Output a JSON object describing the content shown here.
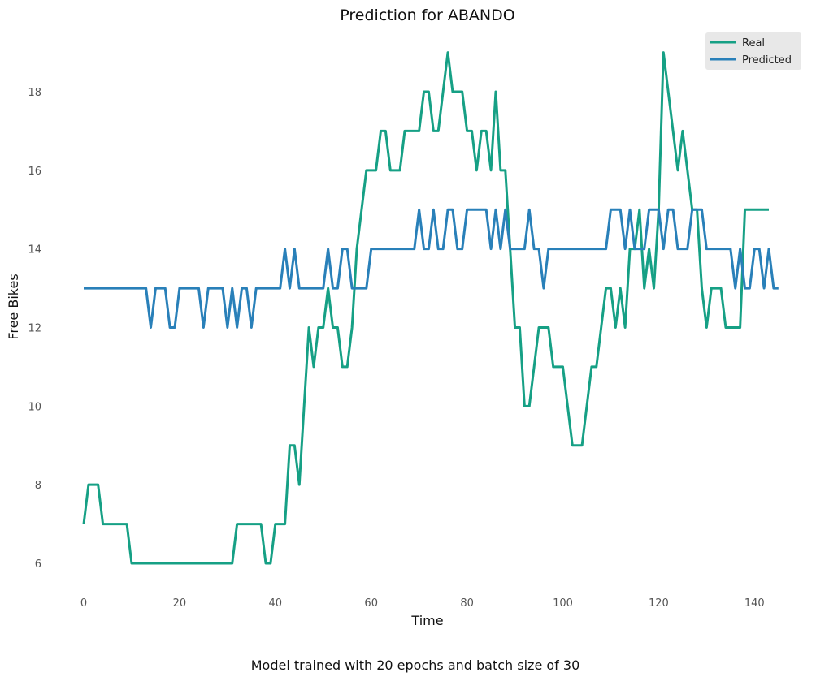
{
  "chart_data": {
    "type": "line",
    "title": "Prediction for ABANDO",
    "xlabel": "Time",
    "ylabel": "Free Bikes",
    "caption": "Model trained with 20 epochs and batch size of 30",
    "xlim": [
      -2,
      145
    ],
    "ylim": [
      5.2,
      19.6
    ],
    "xticks": [
      0,
      20,
      40,
      60,
      80,
      100,
      120,
      140
    ],
    "yticks": [
      6,
      8,
      10,
      12,
      14,
      16,
      18
    ],
    "grid": false,
    "legend": "top-right",
    "series": [
      {
        "name": "Real",
        "color": "#16a085",
        "values": [
          7,
          8,
          8,
          8,
          7,
          7,
          7,
          7,
          7,
          7,
          6,
          6,
          6,
          6,
          6,
          6,
          6,
          6,
          6,
          6,
          6,
          6,
          6,
          6,
          6,
          6,
          6,
          6,
          6,
          6,
          6,
          6,
          7,
          7,
          7,
          7,
          7,
          7,
          6,
          6,
          7,
          7,
          7,
          9,
          9,
          8,
          10,
          12,
          11,
          12,
          12,
          13,
          12,
          12,
          11,
          11,
          12,
          14,
          15,
          16,
          16,
          16,
          17,
          17,
          16,
          16,
          16,
          17,
          17,
          17,
          17,
          18,
          18,
          17,
          17,
          18,
          19,
          18,
          18,
          18,
          17,
          17,
          16,
          17,
          17,
          16,
          18,
          16,
          16,
          14,
          12,
          12,
          10,
          10,
          11,
          12,
          12,
          12,
          11,
          11,
          11,
          10,
          9,
          9,
          9,
          10,
          11,
          11,
          12,
          13,
          13,
          12,
          13,
          12,
          14,
          14,
          15,
          13,
          14,
          13,
          15,
          19,
          18,
          17,
          16,
          17,
          16,
          15,
          15,
          13,
          12,
          13,
          13,
          13,
          12,
          12,
          12,
          12,
          15,
          15,
          15,
          15,
          15,
          15
        ]
      },
      {
        "name": "Predicted",
        "color": "#2980b9",
        "values": [
          13,
          13,
          13,
          13,
          13,
          13,
          13,
          13,
          13,
          13,
          13,
          13,
          13,
          13,
          12,
          13,
          13,
          13,
          12,
          12,
          13,
          13,
          13,
          13,
          13,
          12,
          13,
          13,
          13,
          13,
          12,
          13,
          12,
          13,
          13,
          12,
          13,
          13,
          13,
          13,
          13,
          13,
          14,
          13,
          14,
          13,
          13,
          13,
          13,
          13,
          13,
          14,
          13,
          13,
          14,
          14,
          13,
          13,
          13,
          13,
          14,
          14,
          14,
          14,
          14,
          14,
          14,
          14,
          14,
          14,
          15,
          14,
          14,
          15,
          14,
          14,
          15,
          15,
          14,
          14,
          15,
          15,
          15,
          15,
          15,
          14,
          15,
          14,
          15,
          14,
          14,
          14,
          14,
          15,
          14,
          14,
          13,
          14,
          14,
          14,
          14,
          14,
          14,
          14,
          14,
          14,
          14,
          14,
          14,
          14,
          15,
          15,
          15,
          14,
          15,
          14,
          14,
          14,
          15,
          15,
          15,
          14,
          15,
          15,
          14,
          14,
          14,
          15,
          15,
          15,
          14,
          14,
          14,
          14,
          14,
          14,
          13,
          14,
          13,
          13,
          14,
          14,
          13,
          14,
          13,
          13
        ]
      }
    ]
  }
}
